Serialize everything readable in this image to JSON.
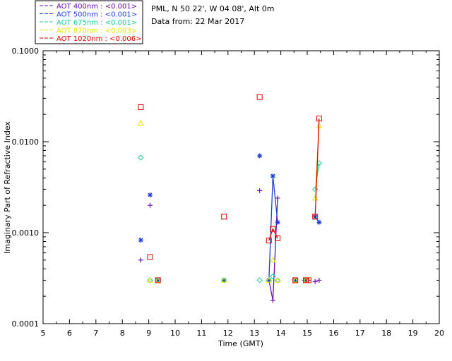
{
  "header": {
    "site": "PML, N 50 22', W 04 08', Alt 0m",
    "date_line": "Data from: 22 Mar 2017"
  },
  "chart_data": {
    "type": "scatter",
    "title": "",
    "xlabel": "Time (GMT)",
    "ylabel": "Imaginary Part of Refractive Index",
    "xlim": [
      5,
      20
    ],
    "ylim": [
      0.0001,
      0.1
    ],
    "yscale": "log",
    "grid": false,
    "legend_position": "top-left, outside plot",
    "x_ticks": [
      "5",
      "6",
      "7",
      "8",
      "9",
      "10",
      "11",
      "12",
      "13",
      "14",
      "15",
      "16",
      "17",
      "18",
      "19",
      "20"
    ],
    "y_ticks": [
      "0.0001",
      "0.0010",
      "0.0100",
      "0.1000"
    ],
    "series": [
      {
        "name": "AOT 400nm : <0.001>",
        "color": "#6a0dad",
        "marker": "plus",
        "points": [
          [
            8.7,
            0.0005
          ],
          [
            9.05,
            0.002
          ],
          [
            9.35,
            0.0003
          ],
          [
            11.85,
            0.0003
          ],
          [
            13.2,
            0.0029
          ],
          [
            13.55,
            0.0003
          ],
          [
            13.7,
            0.00018
          ],
          [
            13.88,
            0.0024
          ],
          [
            14.55,
            0.0003
          ],
          [
            14.9,
            0.0003
          ],
          [
            15.05,
            0.0003
          ],
          [
            15.3,
            0.00029
          ],
          [
            15.45,
            0.0003
          ]
        ],
        "lines": [
          [
            [
              13.55,
              0.0003
            ],
            [
              13.7,
              0.00018
            ],
            [
              13.88,
              0.0024
            ]
          ]
        ]
      },
      {
        "name": "AOT 500nm : <0.001>",
        "color": "#1f3fd0",
        "marker": "star",
        "points": [
          [
            8.7,
            0.00083
          ],
          [
            9.05,
            0.0026
          ],
          [
            9.35,
            0.0003
          ],
          [
            11.85,
            0.0003
          ],
          [
            13.2,
            0.007
          ],
          [
            13.55,
            0.0003
          ],
          [
            13.7,
            0.0042
          ],
          [
            13.88,
            0.0013
          ],
          [
            14.55,
            0.0003
          ],
          [
            14.95,
            0.0003
          ],
          [
            15.3,
            0.0015
          ],
          [
            15.45,
            0.0013
          ]
        ],
        "lines": [
          [
            [
              13.55,
              0.0003
            ],
            [
              13.7,
              0.0042
            ],
            [
              13.88,
              0.0013
            ]
          ],
          [
            [
              15.3,
              0.0015
            ],
            [
              15.45,
              0.0013
            ]
          ]
        ]
      },
      {
        "name": "AOT 675nm : <0.001>",
        "color": "#20c997",
        "marker": "diamond",
        "points": [
          [
            8.7,
            0.0067
          ],
          [
            9.05,
            0.0003
          ],
          [
            9.35,
            0.0003
          ],
          [
            11.85,
            0.0003
          ],
          [
            13.2,
            0.0003
          ],
          [
            13.55,
            0.0003
          ],
          [
            13.7,
            0.00033
          ],
          [
            13.88,
            0.0003
          ],
          [
            14.55,
            0.0003
          ],
          [
            14.95,
            0.0003
          ],
          [
            15.3,
            0.003
          ],
          [
            15.45,
            0.0058
          ]
        ],
        "lines": [
          [
            [
              15.3,
              0.003
            ],
            [
              15.45,
              0.0058
            ]
          ]
        ]
      },
      {
        "name": "AOT 870nm : <0.003>",
        "color": "#e6e600",
        "marker": "triangle",
        "points": [
          [
            8.7,
            0.016
          ],
          [
            9.05,
            0.0003
          ],
          [
            9.35,
            0.0003
          ],
          [
            11.85,
            0.0003
          ],
          [
            13.55,
            0.0003
          ],
          [
            13.7,
            0.0005
          ],
          [
            13.88,
            0.0003
          ],
          [
            14.55,
            0.0003
          ],
          [
            14.95,
            0.0003
          ],
          [
            15.3,
            0.0024
          ],
          [
            15.45,
            0.015
          ]
        ],
        "lines": [
          [
            [
              15.3,
              0.0024
            ],
            [
              15.45,
              0.015
            ]
          ]
        ]
      },
      {
        "name": "AOT 1020nm : <0.006>",
        "color": "#e00000",
        "marker": "square",
        "points": [
          [
            8.7,
            0.024
          ],
          [
            9.05,
            0.00054
          ],
          [
            9.35,
            0.0003
          ],
          [
            11.85,
            0.0015
          ],
          [
            13.2,
            0.031
          ],
          [
            13.55,
            0.00082
          ],
          [
            13.7,
            0.0011
          ],
          [
            13.88,
            0.00087
          ],
          [
            14.55,
            0.0003
          ],
          [
            14.95,
            0.0003
          ],
          [
            15.05,
            0.0003
          ],
          [
            15.3,
            0.0015
          ],
          [
            15.45,
            0.018
          ]
        ],
        "lines": [
          [
            [
              13.55,
              0.00082
            ],
            [
              13.7,
              0.0011
            ],
            [
              13.88,
              0.00087
            ]
          ],
          [
            [
              15.3,
              0.0015
            ],
            [
              15.45,
              0.018
            ]
          ]
        ]
      }
    ]
  }
}
